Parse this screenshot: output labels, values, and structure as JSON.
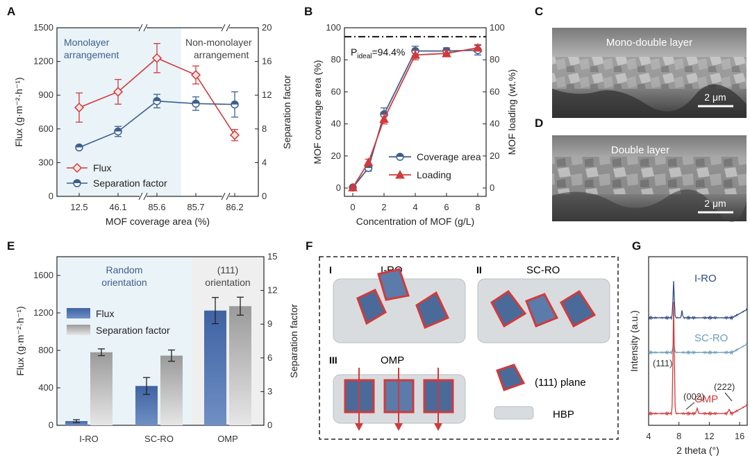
{
  "panels": {
    "a": {
      "label": "A",
      "region_left": "Monolayer",
      "region_left2": "arrangement",
      "region_right": "Non-monolayer",
      "region_right2": "arrangement"
    },
    "b": {
      "label": "B",
      "ideal_prefix": "P",
      "ideal_sub": "ideal",
      "ideal_value": "=94.4%"
    },
    "c": {
      "label": "C",
      "caption": "Mono-double layer",
      "scale": "2 μm"
    },
    "d": {
      "label": "D",
      "caption": "Double layer",
      "scale": "2 μm"
    },
    "e": {
      "label": "E",
      "region_left": "Random",
      "region_left2": "orientation",
      "region_right": "(111)",
      "region_right2": "orientation"
    },
    "f": {
      "label": "F",
      "sub1_num": "I",
      "sub1_name": "I-RO",
      "sub2_num": "II",
      "sub2_name": "SC-RO",
      "sub3_num": "III",
      "sub3_name": "OMP",
      "legend_plane": "(111) plane",
      "legend_hbp": "HBP"
    },
    "g": {
      "label": "G"
    }
  },
  "colors": {
    "red": "#d23a3a",
    "blue": "#3b5f8f",
    "gray": "#8c8c8c",
    "teal": "#6a9db8",
    "navy": "#2d4a84"
  },
  "chart_data": [
    {
      "id": "A",
      "type": "line",
      "xlabel": "MOF coverage area (%)",
      "categories": [
        "12.5",
        "46.1",
        "85.6",
        "85.7",
        "86.2"
      ],
      "ylabel": "Flux (g·m⁻²·h⁻¹)",
      "ylim": [
        0,
        1500
      ],
      "yticks": [
        0,
        300,
        600,
        900,
        1200,
        1500
      ],
      "y2label": "Separation factor",
      "y2lim": [
        0,
        20
      ],
      "y2ticks": [
        0,
        4,
        8,
        12,
        16,
        20
      ],
      "series": [
        {
          "name": "Flux",
          "axis": "left",
          "values": [
            790,
            930,
            1230,
            1080,
            545
          ],
          "errors": [
            130,
            110,
            130,
            80,
            50
          ]
        },
        {
          "name": "Separation factor",
          "axis": "right",
          "values": [
            5.8,
            7.7,
            11.3,
            11.0,
            10.9
          ],
          "errors": [
            0.2,
            0.6,
            0.8,
            0.8,
            1.5
          ]
        }
      ]
    },
    {
      "id": "B",
      "type": "line",
      "xlabel": "Concentration of MOF (g/L)",
      "x": [
        0,
        1,
        2,
        4,
        6,
        8
      ],
      "xticks": [
        0,
        2,
        4,
        6,
        8
      ],
      "ylabel": "MOF coverage area (%)",
      "ylim": [
        0,
        100
      ],
      "yticks": [
        0,
        20,
        40,
        60,
        80,
        100
      ],
      "y2label": "MOF loading (wt.%)",
      "y2lim": [
        0,
        100
      ],
      "y2ticks": [
        0,
        20,
        40,
        60,
        80,
        100
      ],
      "ideal_line": 94.4,
      "series": [
        {
          "name": "Coverage area",
          "values": [
            0.3,
            12.5,
            46,
            85.5,
            85.5,
            86
          ],
          "errors": [
            1,
            2,
            4,
            3,
            2,
            3
          ]
        },
        {
          "name": "Loading",
          "values": [
            0.3,
            16,
            43,
            83,
            84,
            87.5
          ],
          "errors": [
            1,
            2,
            3,
            3,
            2,
            2
          ]
        }
      ]
    },
    {
      "id": "E",
      "type": "bar",
      "categories": [
        "I-RO",
        "SC-RO",
        "OMP"
      ],
      "ylabel": "Flux (g·m⁻²·h⁻¹)",
      "ylim": [
        0,
        1800
      ],
      "yticks": [
        0,
        400,
        800,
        1200,
        1600
      ],
      "y2label": "Separation factor",
      "y2lim": [
        0,
        15
      ],
      "y2ticks": [
        0,
        3,
        6,
        9,
        12,
        15
      ],
      "series": [
        {
          "name": "Flux",
          "axis": "left",
          "values": [
            45,
            420,
            1225
          ],
          "errors": [
            15,
            90,
            140
          ]
        },
        {
          "name": "Separation factor",
          "axis": "right",
          "values": [
            6.5,
            6.2,
            10.6
          ],
          "errors": [
            0.3,
            0.5,
            0.8
          ]
        }
      ]
    },
    {
      "id": "G",
      "type": "line",
      "xlabel": "2 theta (°)",
      "xlim": [
        4,
        17
      ],
      "xticks": [
        4,
        8,
        12,
        16
      ],
      "ylabel": "Intensity (a.u.)",
      "series": [
        {
          "name": "I-RO",
          "color": "#2d4a84"
        },
        {
          "name": "SC-RO",
          "color": "#6a9db8"
        },
        {
          "name": "OMP",
          "color": "#d23a3a"
        }
      ],
      "annotations": [
        "(111)",
        "(002)",
        "(222)"
      ]
    }
  ]
}
